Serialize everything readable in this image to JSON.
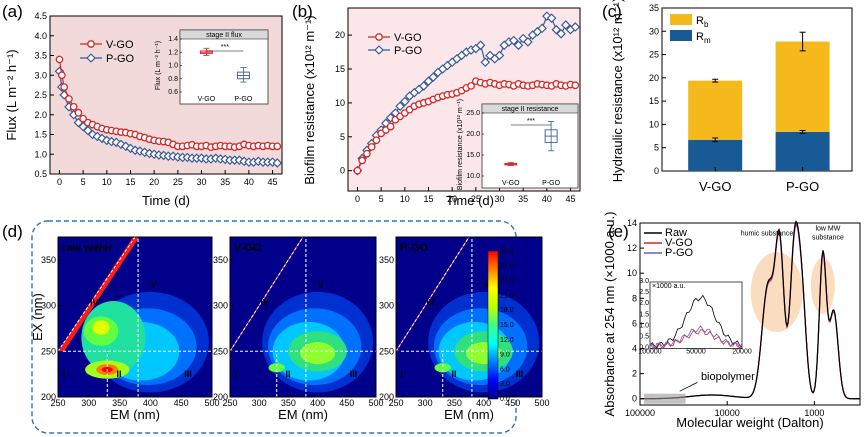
{
  "panel_labels": {
    "a": "(a)",
    "b": "(b)",
    "c": "(c)",
    "d": "(d)",
    "e": "(e)"
  },
  "colors": {
    "vgo": "#d62728",
    "pgo": "#3a5a98",
    "rb": "#f5b91c",
    "rm": "#175a95",
    "bg_a": "#f2dada",
    "bg_b": "#fbe7ea"
  },
  "chart_data": [
    {
      "id": "a",
      "type": "line",
      "xlabel": "Time (d)",
      "ylabel": "Flux (L m⁻² h⁻¹)",
      "xlim": [
        -2,
        47
      ],
      "ylim": [
        0.5,
        4.5
      ],
      "xticks": [
        0,
        5,
        10,
        15,
        20,
        25,
        30,
        35,
        40,
        45
      ],
      "yticks": [
        0.5,
        1.0,
        1.5,
        2.0,
        2.5,
        3.0,
        3.5,
        4.0,
        4.5
      ],
      "series": [
        {
          "name": "V-GO",
          "x": [
            0,
            0.5,
            1,
            2,
            3,
            4,
            5,
            6,
            7,
            8,
            9,
            10,
            11,
            12,
            13,
            14,
            15,
            16,
            17,
            18,
            19,
            20,
            21,
            22,
            23,
            24,
            25,
            26,
            27,
            28,
            29,
            30,
            31,
            32,
            33,
            34,
            35,
            36,
            37,
            38,
            39,
            40,
            41,
            42,
            43,
            44,
            45,
            46
          ],
          "values": [
            3.4,
            3.0,
            2.7,
            2.4,
            2.2,
            2.05,
            1.9,
            1.8,
            1.75,
            1.7,
            1.65,
            1.62,
            1.6,
            1.58,
            1.56,
            1.55,
            1.52,
            1.5,
            1.45,
            1.42,
            1.38,
            1.35,
            1.33,
            1.32,
            1.3,
            1.25,
            1.2,
            1.2,
            1.22,
            1.24,
            1.2,
            1.2,
            1.22,
            1.18,
            1.2,
            1.22,
            1.2,
            1.2,
            1.18,
            1.2,
            1.25,
            1.22,
            1.2,
            1.22,
            1.2,
            1.22,
            1.2,
            1.2
          ]
        },
        {
          "name": "P-GO",
          "x": [
            0,
            0.5,
            1,
            2,
            3,
            4,
            5,
            6,
            7,
            8,
            9,
            10,
            11,
            12,
            13,
            14,
            15,
            16,
            17,
            18,
            19,
            20,
            21,
            22,
            23,
            24,
            25,
            26,
            27,
            28,
            29,
            30,
            31,
            32,
            33,
            34,
            35,
            36,
            37,
            38,
            39,
            40,
            41,
            42,
            43,
            44,
            45,
            46
          ],
          "values": [
            3.1,
            2.7,
            2.5,
            2.2,
            2.0,
            1.8,
            1.7,
            1.6,
            1.5,
            1.45,
            1.4,
            1.35,
            1.32,
            1.3,
            1.25,
            1.2,
            1.15,
            1.1,
            1.08,
            1.05,
            1.02,
            1.0,
            0.98,
            0.97,
            0.95,
            0.95,
            0.93,
            0.92,
            0.92,
            0.9,
            0.9,
            0.9,
            0.88,
            0.88,
            0.9,
            0.88,
            0.87,
            0.85,
            0.85,
            0.85,
            0.82,
            0.8,
            0.8,
            0.82,
            0.8,
            0.8,
            0.8,
            0.78
          ]
        }
      ],
      "inset": {
        "title": "stage II flux",
        "ylabel": "Flux (L m⁻² h⁻¹)",
        "categories": [
          "V-GO",
          "P-GO"
        ],
        "ylim": [
          0.6,
          1.4
        ],
        "yticks": [
          0.6,
          0.8,
          1.0,
          1.2,
          1.4
        ],
        "boxes": [
          {
            "name": "V-GO",
            "min": 1.15,
            "q1": 1.18,
            "median": 1.2,
            "q3": 1.22,
            "max": 1.26
          },
          {
            "name": "P-GO",
            "min": 0.75,
            "q1": 0.8,
            "median": 0.85,
            "q3": 0.9,
            "max": 0.97
          }
        ],
        "significance": "***"
      }
    },
    {
      "id": "b",
      "type": "line",
      "xlabel": "Time (d)",
      "ylabel": "Biofilm  resistance (x10¹² m⁻¹)",
      "xlim": [
        -2,
        47
      ],
      "ylim": [
        -3,
        24
      ],
      "xticks": [
        0,
        5,
        10,
        15,
        20,
        25,
        30,
        35,
        40,
        45
      ],
      "yticks": [
        0,
        5,
        10,
        15,
        20
      ],
      "series": [
        {
          "name": "V-GO",
          "x": [
            0,
            1,
            2,
            3,
            4,
            5,
            6,
            7,
            8,
            9,
            10,
            11,
            12,
            13,
            14,
            15,
            16,
            17,
            18,
            19,
            20,
            21,
            22,
            23,
            24,
            25,
            26,
            27,
            28,
            29,
            30,
            31,
            32,
            33,
            34,
            35,
            36,
            37,
            38,
            39,
            40,
            41,
            42,
            43,
            44,
            45,
            46
          ],
          "values": [
            0,
            1.5,
            2.5,
            3.5,
            4.5,
            5.5,
            6,
            6.5,
            7.5,
            8,
            8.5,
            9,
            9.5,
            9.8,
            10,
            10.2,
            10.5,
            10.8,
            11,
            11.2,
            11.3,
            11.5,
            11.8,
            12.2,
            12.5,
            13.2,
            13,
            12.8,
            13,
            12.8,
            12.6,
            12.8,
            12.7,
            12.5,
            12.8,
            12.6,
            12.5,
            12.6,
            12.8,
            12.7,
            12.6,
            12.5,
            12.8,
            12.6,
            12.5,
            12.7,
            12.6
          ]
        },
        {
          "name": "P-GO",
          "x": [
            0,
            1,
            2,
            3,
            4,
            5,
            6,
            7,
            8,
            9,
            10,
            11,
            12,
            13,
            14,
            15,
            16,
            17,
            18,
            19,
            20,
            21,
            22,
            23,
            24,
            25,
            26,
            27,
            28,
            29,
            30,
            31,
            32,
            33,
            34,
            35,
            36,
            37,
            38,
            39,
            40,
            41,
            42,
            43,
            44,
            45,
            46
          ],
          "values": [
            0,
            1.8,
            3,
            4,
            5.2,
            6,
            7,
            7.8,
            8.5,
            9.5,
            10.2,
            11,
            11.5,
            12,
            12.5,
            13.2,
            13.8,
            14.5,
            15,
            15.5,
            16,
            16.5,
            17,
            17.5,
            17.8,
            18,
            18.5,
            16,
            17,
            16.5,
            17,
            18.5,
            19,
            19.2,
            18.5,
            19.5,
            19,
            20,
            20.5,
            21,
            22.8,
            22.5,
            20.8,
            20.2,
            21.5,
            20.8,
            21.2
          ]
        }
      ],
      "inset": {
        "title": "stage II resistance",
        "ylabel": "Biofilm resistance (x10¹² m⁻¹)",
        "categories": [
          "V-GO",
          "P-GO"
        ],
        "ylim": [
          10,
          25
        ],
        "yticks": [
          10,
          15,
          20,
          25
        ],
        "boxes": [
          {
            "name": "V-GO",
            "min": 12.5,
            "q1": 12.7,
            "median": 12.8,
            "q3": 13.0,
            "max": 13.2
          },
          {
            "name": "P-GO",
            "min": 16,
            "q1": 18,
            "median": 19.5,
            "q3": 21,
            "max": 23
          }
        ],
        "significance": "***"
      }
    },
    {
      "id": "c",
      "type": "bar",
      "ylabel": "Hydraulic resistance (x10¹² m⁻¹)",
      "categories": [
        "V-GO",
        "P-GO"
      ],
      "ylim": [
        0,
        35
      ],
      "yticks": [
        0,
        5,
        10,
        15,
        20,
        25,
        30,
        35
      ],
      "series": [
        {
          "name": "R_m",
          "legend": "R",
          "sub": "m",
          "values": [
            6.7,
            8.4
          ],
          "errors": [
            0.4,
            0.3
          ]
        },
        {
          "name": "R_b",
          "legend": "R",
          "sub": "b",
          "values": [
            12.7,
            19.4
          ],
          "errors": [
            0.3,
            2.0
          ]
        }
      ]
    },
    {
      "id": "d",
      "type": "heatmap",
      "xlabel": "EM (nm)",
      "ylabel": "EX (nm)",
      "xlim": [
        250,
        500
      ],
      "ylim": [
        200,
        375
      ],
      "xticks": [
        250,
        300,
        350,
        400,
        450,
        500
      ],
      "yticks": [
        200,
        250,
        300,
        350
      ],
      "yticks_small": [
        200,
        250,
        300,
        350
      ],
      "maps": [
        {
          "title": "raw water"
        },
        {
          "title": "V-GO"
        },
        {
          "title": "P-GO"
        }
      ],
      "regions": [
        "I",
        "II",
        "III",
        "IV",
        "V"
      ],
      "colorbar": {
        "ticks": [
          "0.0",
          "3.0",
          "6.0",
          "9.0",
          "12.0",
          "15.0",
          "18.0",
          "21.0",
          "24.0",
          "27.0",
          "30.0"
        ]
      }
    },
    {
      "id": "e",
      "type": "line",
      "xlabel": "Molecular weight (Dalton)",
      "ylabel": "Absorbance at 254 nm (×1000 a.u.)",
      "xscale": "log-reversed",
      "xlim": [
        100000,
        300
      ],
      "ylim": [
        -0.5,
        14
      ],
      "xticks": [
        {
          "v": 100000,
          "label": "100000"
        },
        {
          "v": 10000,
          "label": "10000"
        },
        {
          "v": 1000,
          "label": "1000"
        }
      ],
      "yticks": [
        0,
        2,
        4,
        6,
        8,
        10,
        12,
        14
      ],
      "series": [
        {
          "name": "Raw",
          "color": "#000000"
        },
        {
          "name": "V-GO",
          "color": "#d62728"
        },
        {
          "name": "P-GO",
          "color": "#6a5acd"
        }
      ],
      "annotations": {
        "humic": "humic substance",
        "lowmw": "low MW\nsubstance",
        "biopolymer": "biopolymer"
      },
      "inset": {
        "yticks": [
          "0.0",
          "0.5",
          "1.0",
          "1.5",
          "2.0",
          "2.5",
          "3.0"
        ],
        "xticks": [
          "100000",
          "50000",
          "20000"
        ],
        "ylabel": "×1000 a.u."
      }
    }
  ]
}
